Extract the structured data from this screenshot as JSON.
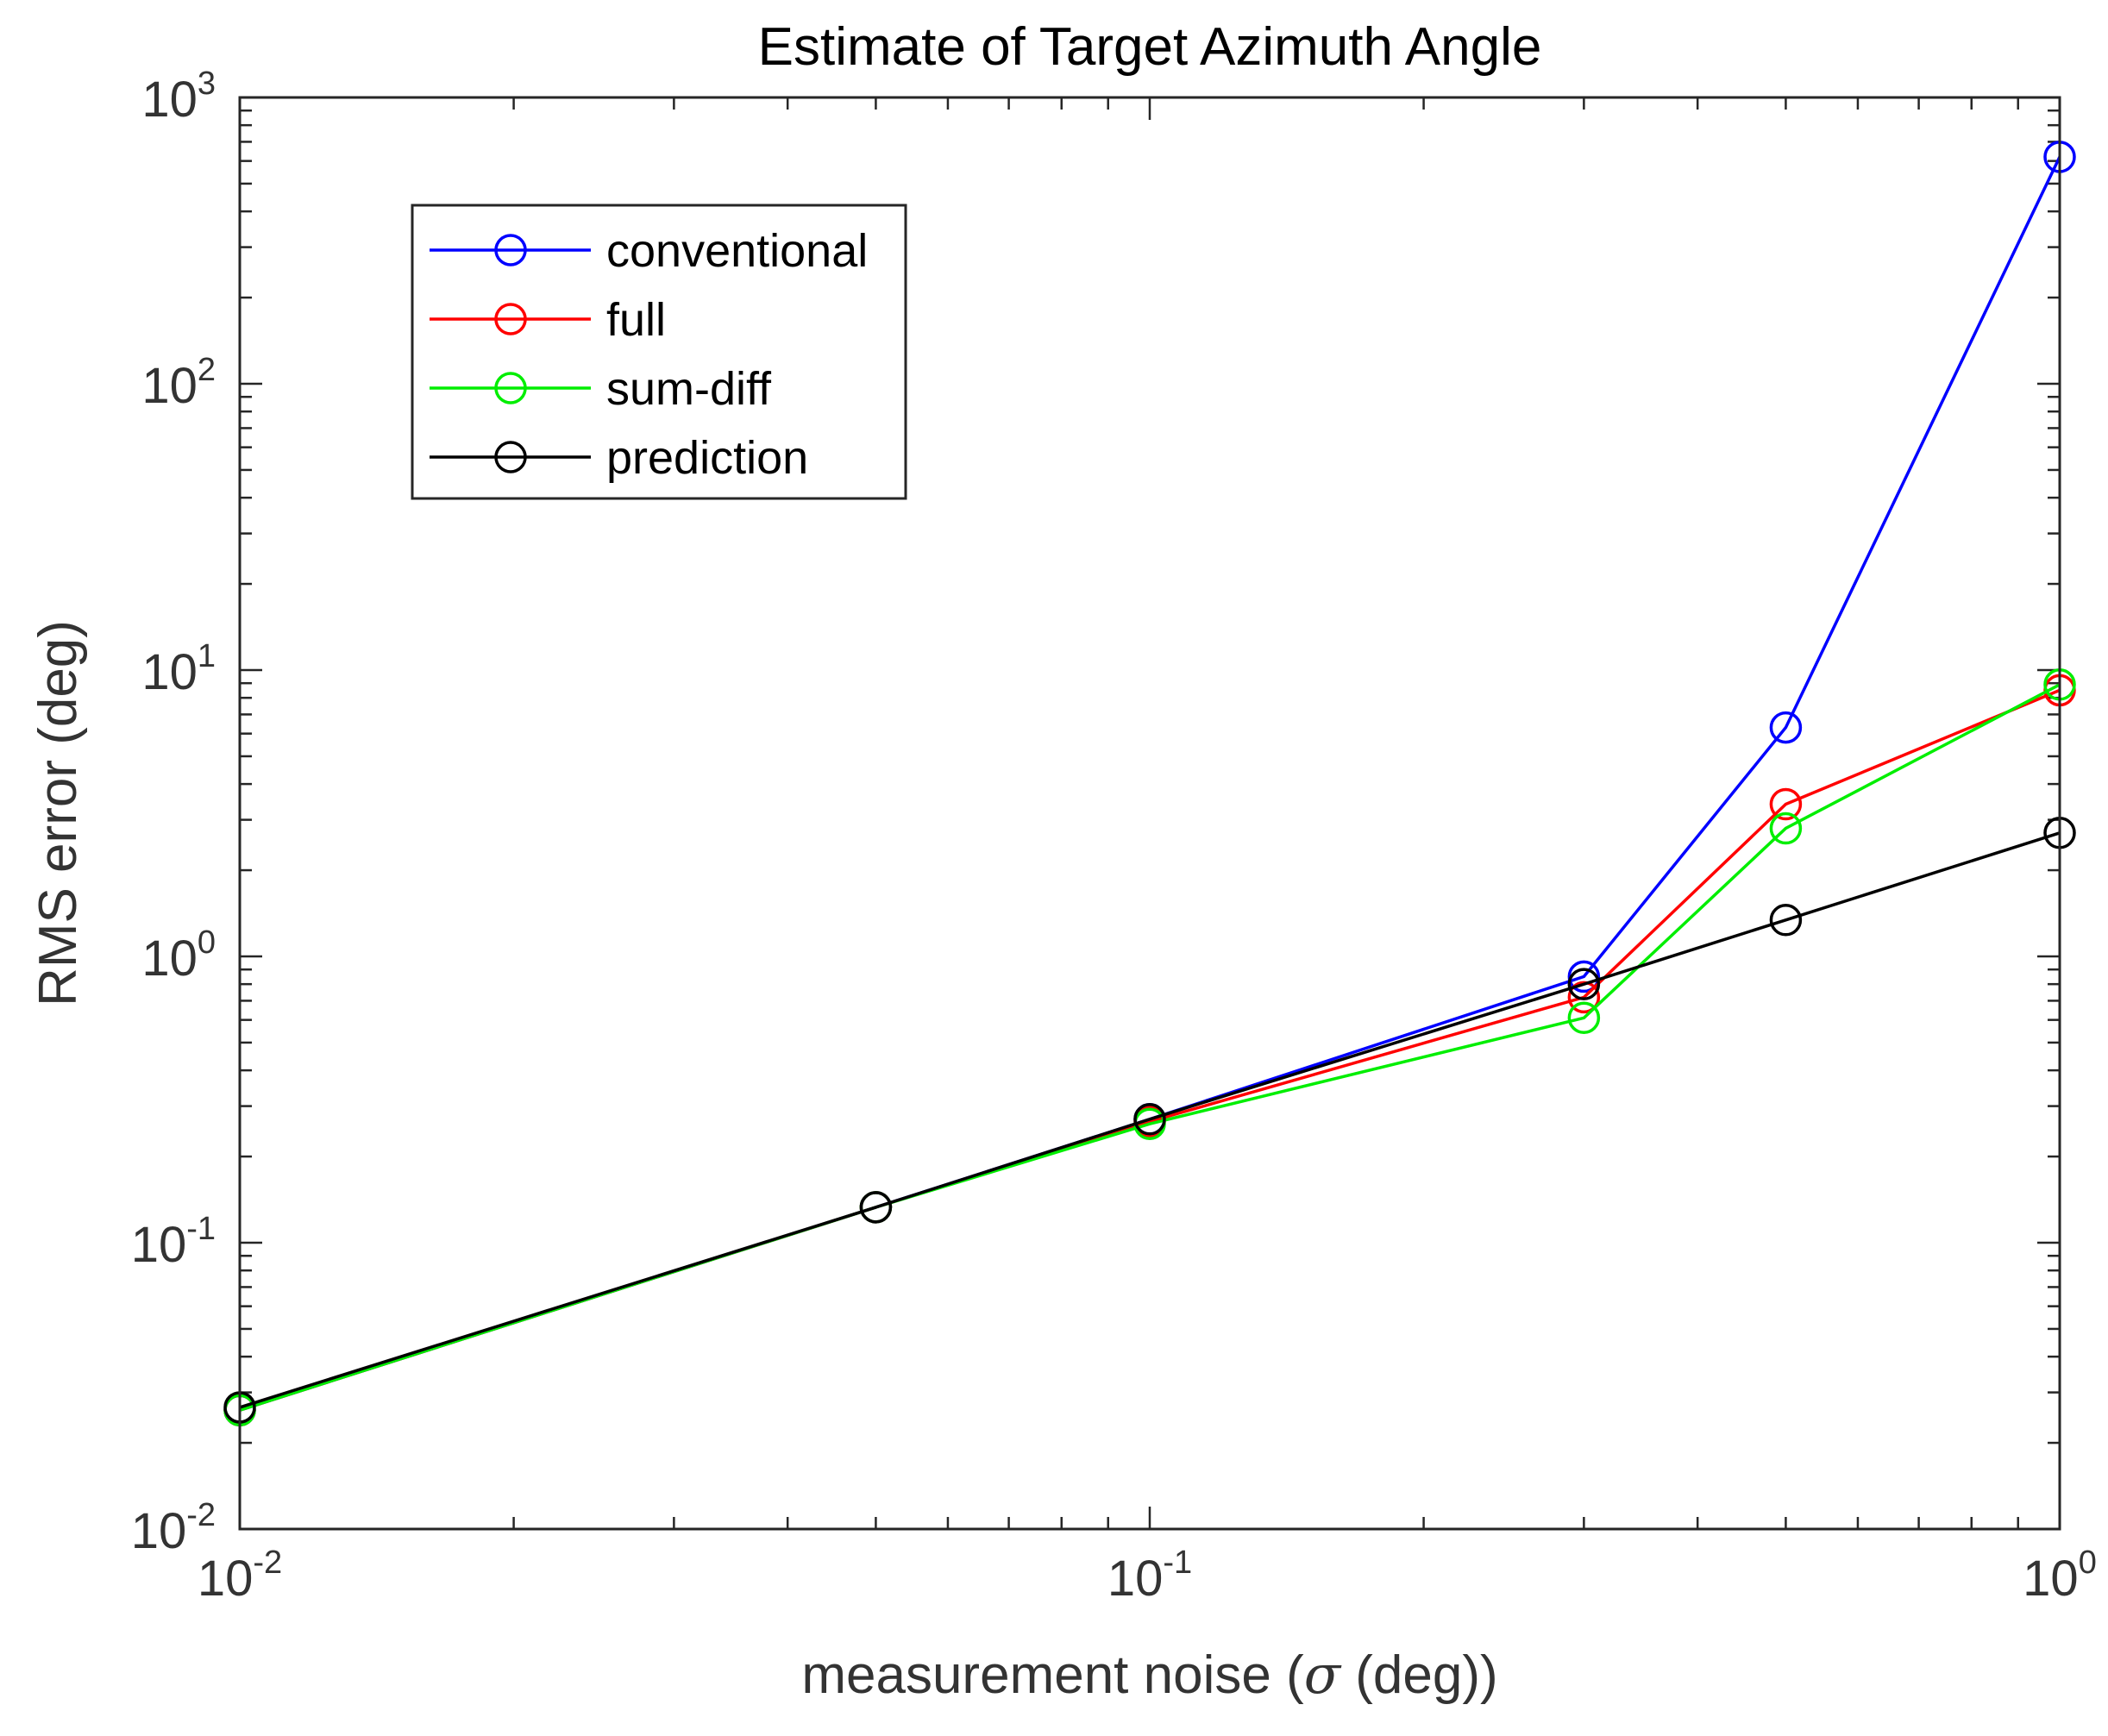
{
  "chart_data": {
    "type": "line",
    "title": "Estimate of Target Azimuth Angle",
    "xlabel_prefix": "measurement noise (",
    "xlabel_symbol": "σ",
    "xlabel_suffix": " (deg))",
    "ylabel": "RMS error (deg)",
    "x_scale": "log",
    "y_scale": "log",
    "xlim": [
      0.01,
      1
    ],
    "ylim": [
      0.01,
      1000
    ],
    "x_ticks": [
      {
        "base": "10",
        "exp": "-2",
        "value": 0.01
      },
      {
        "base": "10",
        "exp": "-1",
        "value": 0.1
      },
      {
        "base": "10",
        "exp": "0",
        "value": 1
      }
    ],
    "y_ticks": [
      {
        "base": "10",
        "exp": "-2",
        "value": 0.01
      },
      {
        "base": "10",
        "exp": "-1",
        "value": 0.1
      },
      {
        "base": "10",
        "exp": "0",
        "value": 1
      },
      {
        "base": "10",
        "exp": "1",
        "value": 10
      },
      {
        "base": "10",
        "exp": "2",
        "value": 100
      },
      {
        "base": "10",
        "exp": "3",
        "value": 1000
      }
    ],
    "grid": false,
    "legend_position": "top-left",
    "series": [
      {
        "name": "conventional",
        "color": "#0000ff",
        "x": [
          0.01,
          0.05,
          0.1,
          0.3,
          0.5,
          1
        ],
        "y": [
          0.026,
          0.133,
          0.27,
          0.85,
          6.3,
          620
        ]
      },
      {
        "name": "full",
        "color": "#ff0000",
        "x": [
          0.01,
          0.05,
          0.1,
          0.3,
          0.5,
          1
        ],
        "y": [
          0.026,
          0.133,
          0.265,
          0.72,
          3.4,
          8.5
        ]
      },
      {
        "name": "sum-diff",
        "color": "#00ee00",
        "x": [
          0.01,
          0.05,
          0.1,
          0.3,
          0.5,
          1
        ],
        "y": [
          0.026,
          0.133,
          0.26,
          0.61,
          2.8,
          8.9
        ]
      },
      {
        "name": "prediction",
        "color": "#000000",
        "x": [
          0.01,
          0.05,
          0.1,
          0.3,
          0.5,
          1
        ],
        "y": [
          0.0266,
          0.133,
          0.27,
          0.8,
          1.34,
          2.7
        ]
      }
    ]
  }
}
